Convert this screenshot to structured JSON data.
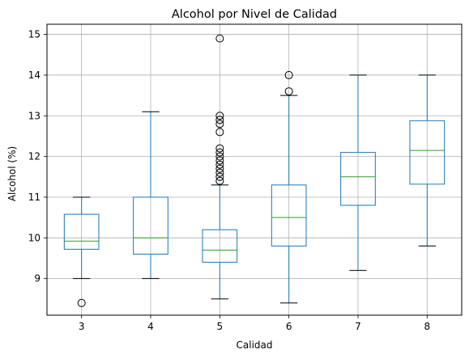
{
  "chart_data": {
    "type": "box",
    "title": "Alcohol por Nivel de Calidad",
    "xlabel": "Calidad",
    "ylabel": "Alcohol (%)",
    "categories": [
      "3",
      "4",
      "5",
      "6",
      "7",
      "8"
    ],
    "ylim": [
      8.1,
      15.25
    ],
    "yticks": [
      9,
      10,
      11,
      12,
      13,
      14,
      15
    ],
    "grid": true,
    "colors": {
      "box": "#1f77b4",
      "median": "#2ca02c",
      "whisker": "#1f77b4",
      "cap": "#000000",
      "grid": "#b0b0b0",
      "flier": "#000000"
    },
    "boxes": [
      {
        "category": "3",
        "whislo": 9.0,
        "q1": 9.72,
        "med": 9.92,
        "q3": 10.58,
        "whishi": 11.0,
        "fliers": [
          8.4
        ]
      },
      {
        "category": "4",
        "whislo": 9.0,
        "q1": 9.6,
        "med": 10.0,
        "q3": 11.0,
        "whishi": 13.1,
        "fliers": []
      },
      {
        "category": "5",
        "whislo": 8.5,
        "q1": 9.4,
        "med": 9.7,
        "q3": 10.2,
        "whishi": 11.3,
        "fliers": [
          11.4,
          11.5,
          11.6,
          11.7,
          11.8,
          11.9,
          12.0,
          12.1,
          12.2,
          12.6,
          12.8,
          12.9,
          13.0,
          14.9
        ]
      },
      {
        "category": "6",
        "whislo": 8.4,
        "q1": 9.8,
        "med": 10.5,
        "q3": 11.3,
        "whishi": 13.5,
        "fliers": [
          13.6,
          14.0
        ]
      },
      {
        "category": "7",
        "whislo": 9.2,
        "q1": 10.8,
        "med": 11.5,
        "q3": 12.1,
        "whishi": 14.0,
        "fliers": []
      },
      {
        "category": "8",
        "whislo": 9.8,
        "q1": 11.32,
        "med": 12.15,
        "q3": 12.88,
        "whishi": 14.0,
        "fliers": []
      }
    ]
  }
}
